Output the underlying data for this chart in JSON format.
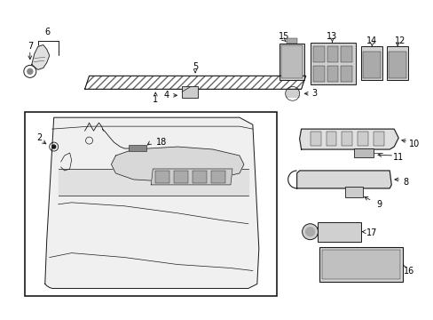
{
  "bg_color": "#ffffff",
  "line_color": "#1a1a1a",
  "label_color": "#000000",
  "fig_width": 4.89,
  "fig_height": 3.6,
  "dpi": 100,
  "label_fontsize": 7.0,
  "lw_main": 0.9,
  "lw_thin": 0.5,
  "lw_label": 0.6
}
